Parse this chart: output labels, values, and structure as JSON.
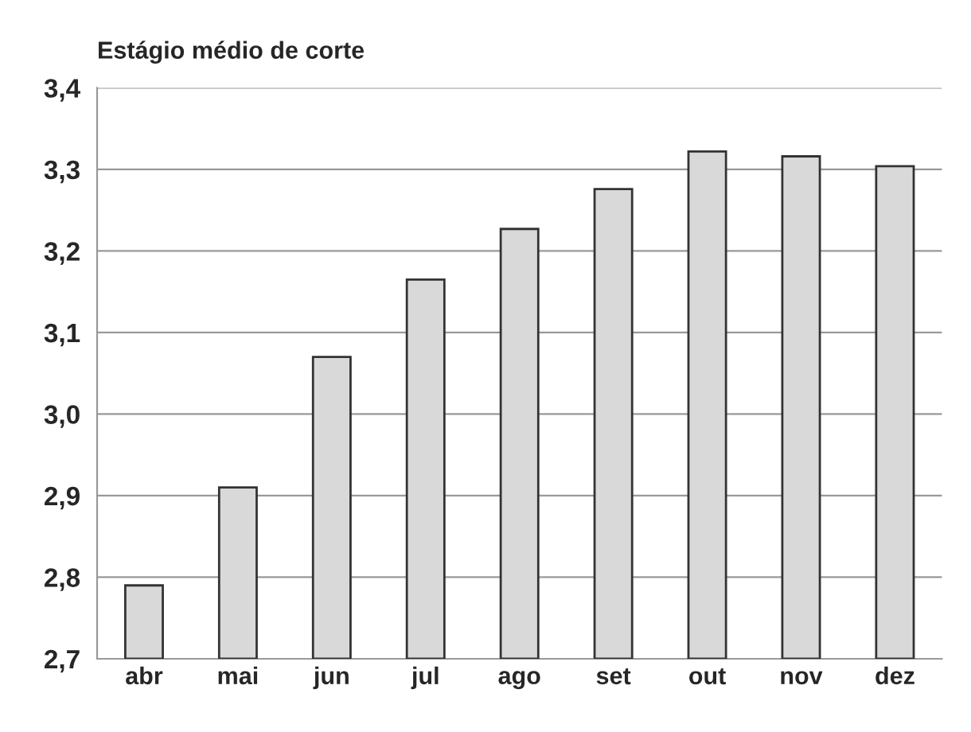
{
  "chart_data": {
    "type": "bar",
    "title": "Estágio médio de corte",
    "categories": [
      "abr",
      "mai",
      "jun",
      "jul",
      "ago",
      "set",
      "out",
      "nov",
      "dez"
    ],
    "values": [
      2.79,
      2.91,
      3.07,
      3.165,
      3.227,
      3.276,
      3.322,
      3.316,
      3.304
    ],
    "color": "#d9d9d9",
    "ylim": [
      2.7,
      3.4
    ],
    "yticks": [
      {
        "value": 2.7,
        "label": "2,7"
      },
      {
        "value": 2.8,
        "label": "2,8"
      },
      {
        "value": 2.9,
        "label": "2,9"
      },
      {
        "value": 3.0,
        "label": "3,0"
      },
      {
        "value": 3.1,
        "label": "3,1"
      },
      {
        "value": 3.2,
        "label": "3,2"
      },
      {
        "value": 3.3,
        "label": "3,3"
      },
      {
        "value": 3.4,
        "label": "3,4"
      }
    ],
    "grid": "y"
  }
}
